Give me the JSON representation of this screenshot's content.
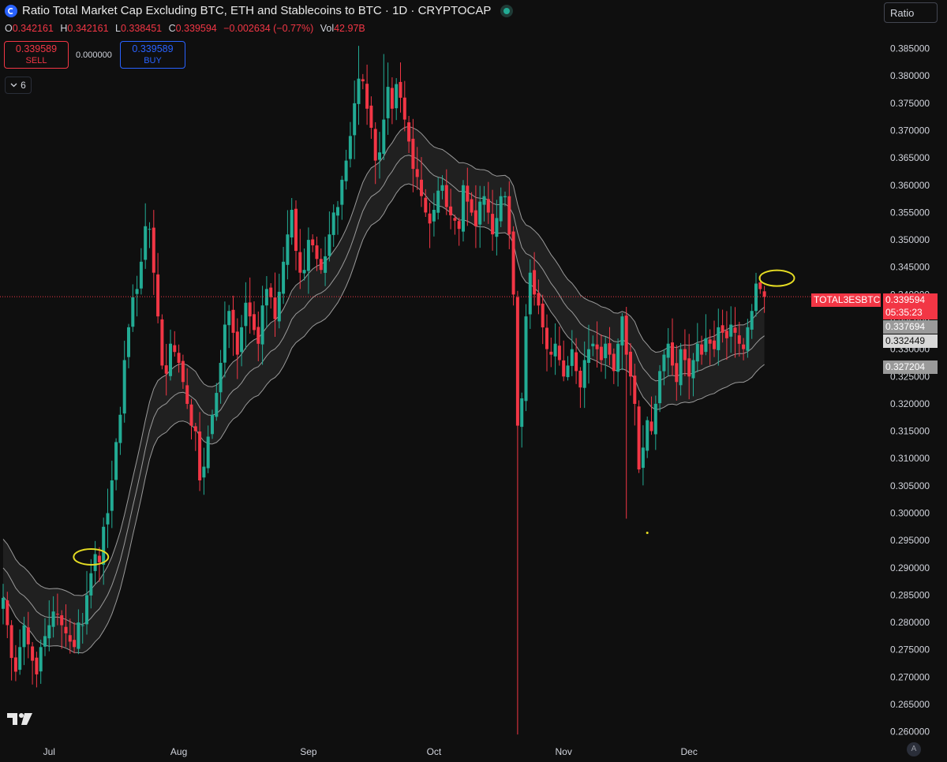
{
  "header": {
    "title": "Ratio Total Market Cap Excluding BTC, ETH and Stablecoins to BTC · 1D · CRYPTOCAP",
    "ohlc": {
      "o_label": "O",
      "o": "0.342161",
      "h_label": "H",
      "h": "0.342161",
      "l_label": "L",
      "l": "0.338451",
      "c_label": "C",
      "c": "0.339594",
      "change": "−0.002634 (−0.77%)",
      "vol_label": "Vol",
      "vol": "42.97B"
    }
  },
  "trade": {
    "sell_price": "0.339589",
    "sell_label": "SELL",
    "spread": "0.000000",
    "buy_price": "0.339589",
    "buy_label": "BUY"
  },
  "indicator_toggle": {
    "count": "6"
  },
  "scale_button": "Ratio",
  "auto_button": "A",
  "price_labels": {
    "symbol": "TOTAL3ESBTC",
    "last": "0.339594",
    "countdown": "05:35:23",
    "band_upper": "0.337694",
    "band_mid": "0.332449",
    "band_lower": "0.327204"
  },
  "colors": {
    "up": "#22ab94",
    "down": "#f23645",
    "background": "#0f0f0f",
    "band_line": "#9a9a9a",
    "band_fill": "#232323",
    "highlight": "#e5dc23"
  },
  "chart_data": {
    "type": "candlestick",
    "symbol": "TOTAL3ESBTC",
    "interval": "1D",
    "ylim": [
      0.2575,
      0.391
    ],
    "y_ticks": [
      "0.260000",
      "0.265000",
      "0.270000",
      "0.275000",
      "0.280000",
      "0.285000",
      "0.290000",
      "0.295000",
      "0.300000",
      "0.305000",
      "0.310000",
      "0.315000",
      "0.320000",
      "0.325000",
      "0.330000",
      "0.335000",
      "0.340000",
      "0.345000",
      "0.350000",
      "0.355000",
      "0.360000",
      "0.365000",
      "0.370000",
      "0.375000",
      "0.380000",
      "0.385000"
    ],
    "x_ticks": [
      {
        "label": "Jul",
        "index": 11
      },
      {
        "label": "Aug",
        "index": 42
      },
      {
        "label": "Sep",
        "index": 73
      },
      {
        "label": "Oct",
        "index": 103
      },
      {
        "label": "Nov",
        "index": 134
      },
      {
        "label": "Dec",
        "index": 164
      }
    ],
    "candles_start_index": 0,
    "closes": [
      0.2845,
      0.2795,
      0.2735,
      0.271,
      0.2755,
      0.2795,
      0.276,
      0.273,
      0.2705,
      0.2755,
      0.2775,
      0.2795,
      0.282,
      0.2815,
      0.2795,
      0.278,
      0.2765,
      0.2755,
      0.28,
      0.2795,
      0.285,
      0.289,
      0.2925,
      0.291,
      0.2975,
      0.3,
      0.306,
      0.313,
      0.318,
      0.328,
      0.334,
      0.3395,
      0.341,
      0.346,
      0.3525,
      0.352,
      0.344,
      0.336,
      0.327,
      0.3255,
      0.331,
      0.3295,
      0.3275,
      0.324,
      0.32,
      0.316,
      0.315,
      0.306,
      0.3085,
      0.314,
      0.318,
      0.322,
      0.3275,
      0.3345,
      0.337,
      0.333,
      0.329,
      0.334,
      0.3385,
      0.336,
      0.3335,
      0.331,
      0.338,
      0.341,
      0.3395,
      0.3355,
      0.3405,
      0.346,
      0.351,
      0.3555,
      0.348,
      0.344,
      0.3445,
      0.35,
      0.349,
      0.3465,
      0.3445,
      0.347,
      0.351,
      0.355,
      0.356,
      0.361,
      0.3645,
      0.369,
      0.375,
      0.3795,
      0.379,
      0.374,
      0.3705,
      0.3645,
      0.366,
      0.372,
      0.378,
      0.374,
      0.3785,
      0.376,
      0.372,
      0.368,
      0.363,
      0.3615,
      0.358,
      0.355,
      0.353,
      0.3555,
      0.359,
      0.36,
      0.356,
      0.3545,
      0.3535,
      0.352,
      0.36,
      0.357,
      0.355,
      0.3525,
      0.357,
      0.358,
      0.355,
      0.351,
      0.354,
      0.358,
      0.358,
      0.351,
      0.34,
      0.316,
      0.321,
      0.336,
      0.344,
      0.34,
      0.338,
      0.334,
      0.33,
      0.329,
      0.331,
      0.328,
      0.325,
      0.327,
      0.33,
      0.326,
      0.323,
      0.328,
      0.33,
      0.331,
      0.33,
      0.328,
      0.331,
      0.329,
      0.326,
      0.331,
      0.336,
      0.329,
      0.325,
      0.32,
      0.308,
      0.312,
      0.317,
      0.315,
      0.32,
      0.326,
      0.329,
      0.331,
      0.327,
      0.324,
      0.33,
      0.328,
      0.325,
      0.328,
      0.331,
      0.329,
      0.332,
      0.331,
      0.33,
      0.334,
      0.333,
      0.332,
      0.3345,
      0.333,
      0.331,
      0.33,
      0.334,
      0.337,
      0.342,
      0.341,
      0.3396
    ],
    "bands": {
      "upper_last": 0.337694,
      "mid_last": 0.332449,
      "lower_last": 0.327204
    },
    "annotations": [
      {
        "type": "ellipse",
        "index": 21,
        "value": 0.292,
        "color": "#e5dc23"
      },
      {
        "type": "ellipse",
        "index": 185,
        "value": 0.343,
        "color": "#e5dc23"
      },
      {
        "type": "dot",
        "index": 154,
        "value": 0.2964,
        "color": "#e5dc23"
      }
    ],
    "last_price": 0.339594,
    "grid": false
  }
}
